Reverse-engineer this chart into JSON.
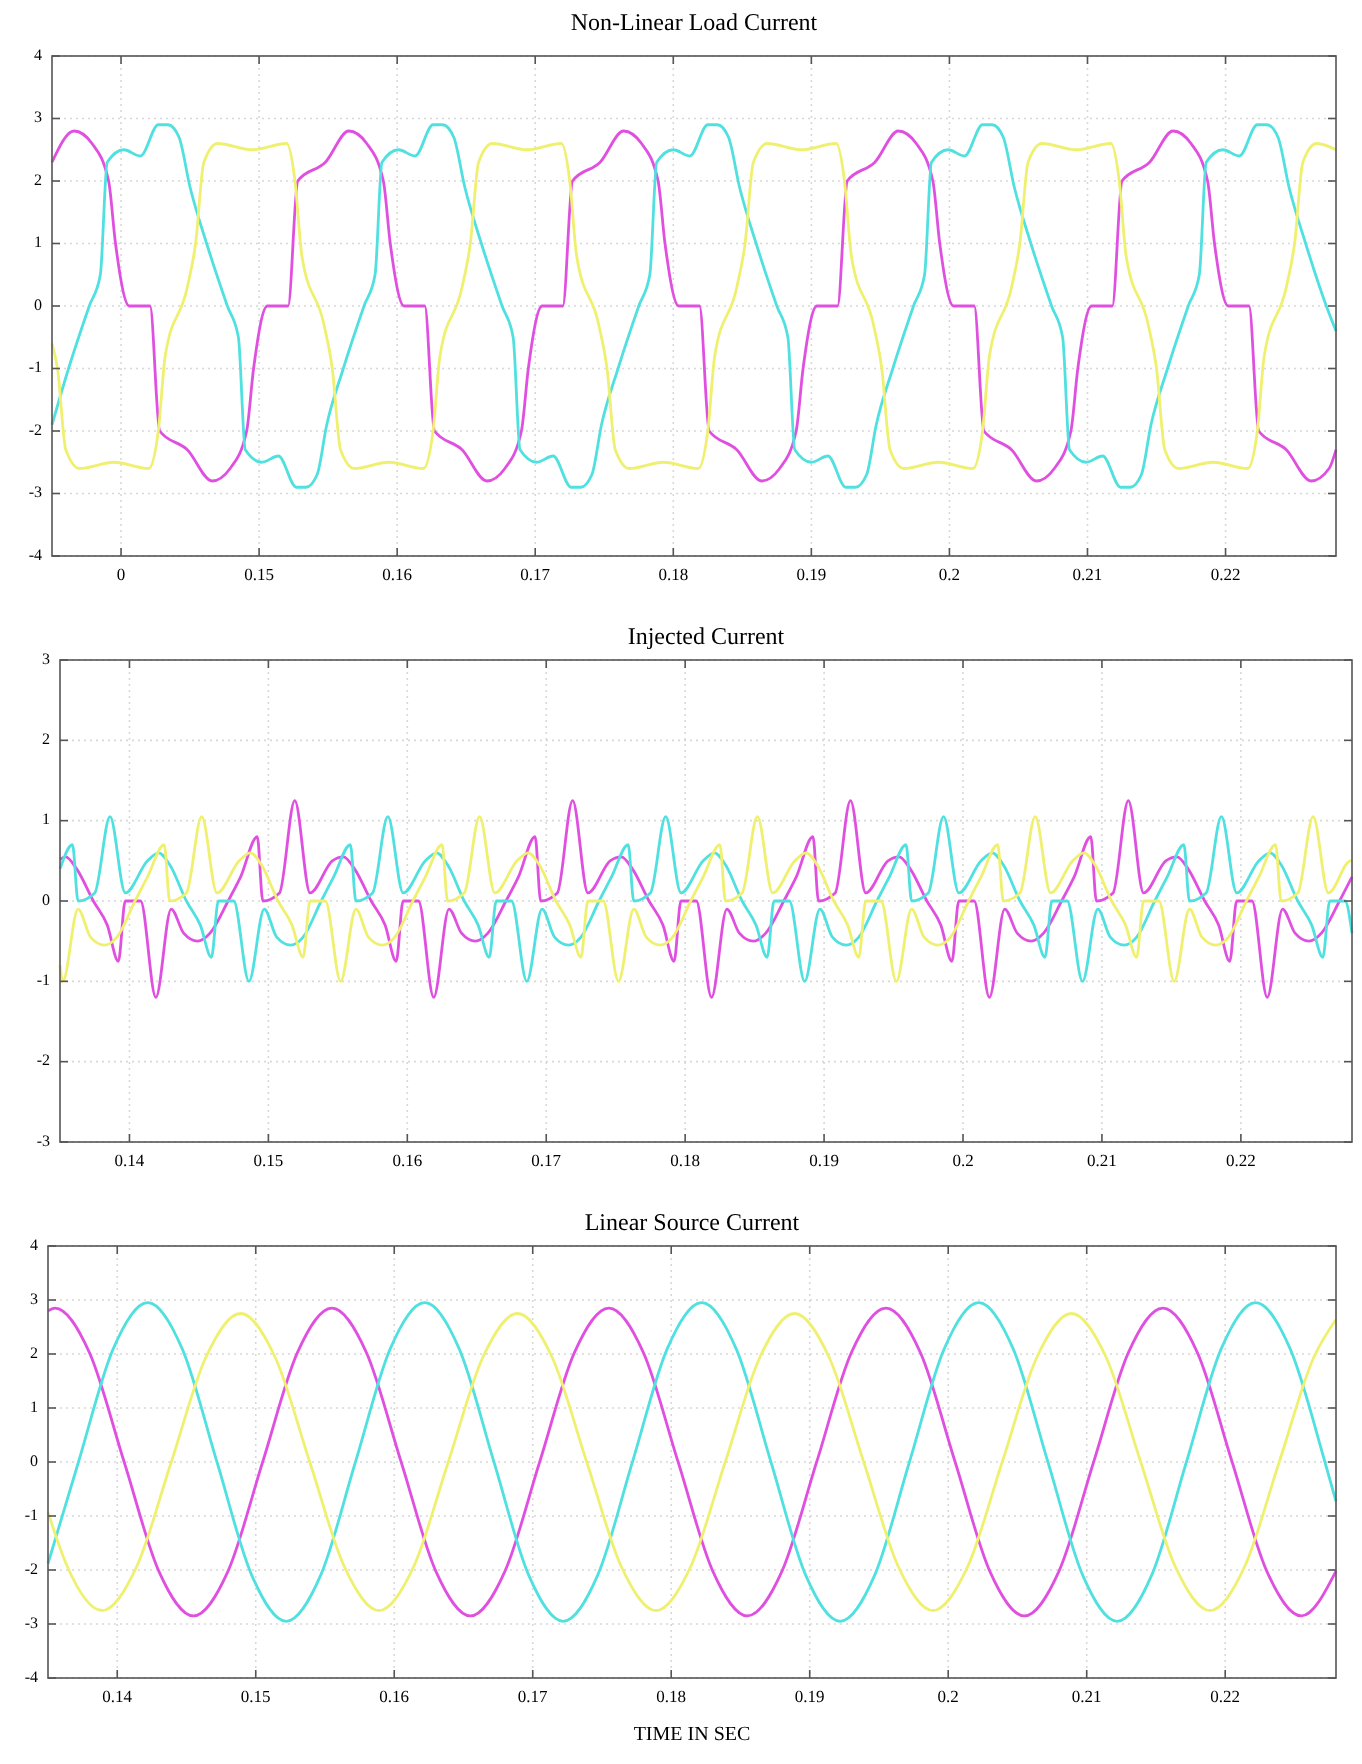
{
  "chart_data": [
    {
      "type": "line",
      "title": "Non-Linear Load Current",
      "xlim": [
        0.135,
        0.228
      ],
      "ylim": [
        -4,
        4
      ],
      "xticks": [
        {
          "value": 0.14,
          "label": "0"
        },
        0.15,
        0.16,
        0.17,
        0.18,
        0.19,
        0.2,
        0.21,
        0.22
      ],
      "yticks": [
        -4,
        -3,
        -2,
        -1,
        0,
        1,
        2,
        3,
        4
      ],
      "grid": true,
      "series": [
        {
          "color": "#e050e0",
          "x": [
            0.135,
            0.1366,
            0.1379,
            0.1391,
            0.1396,
            0.1406,
            0.1421,
            0.1428,
            0.1448,
            0.1466,
            0.1479,
            0.1491,
            0.1496,
            0.1506,
            0.1521,
            0.1528,
            0.1548,
            0.1565,
            0.1578,
            0.159,
            0.1595,
            0.1605,
            0.162,
            0.1627,
            0.1647,
            0.1665,
            0.1678,
            0.169,
            0.1695,
            0.1705,
            0.172,
            0.1727,
            0.1747,
            0.1764,
            0.1777,
            0.1789,
            0.1794,
            0.1804,
            0.1819,
            0.1826,
            0.1846,
            0.1864,
            0.1877,
            0.1889,
            0.1894,
            0.1904,
            0.1919,
            0.1926,
            0.1946,
            0.1963,
            0.1976,
            0.1988,
            0.1993,
            0.2003,
            0.2018,
            0.2025,
            0.2045,
            0.2063,
            0.2076,
            0.2088,
            0.2093,
            0.2103,
            0.2118,
            0.2125,
            0.2145,
            0.2162,
            0.2175,
            0.2187,
            0.2192,
            0.2202,
            0.2217,
            0.2224,
            0.2244,
            0.2262,
            0.2275,
            0.228
          ],
          "values": [
            2.3,
            2.8,
            2.6,
            2.0,
            1.0,
            0,
            0,
            -2.0,
            -2.3,
            -2.8,
            -2.6,
            -2.0,
            -1.0,
            0,
            0,
            2.0,
            2.3,
            2.8,
            2.6,
            2.0,
            1.0,
            0,
            0,
            -2.0,
            -2.3,
            -2.8,
            -2.6,
            -2.0,
            -1.0,
            0,
            0,
            2.0,
            2.3,
            2.8,
            2.6,
            2.0,
            1.0,
            0,
            0,
            -2.0,
            -2.3,
            -2.8,
            -2.6,
            -2.0,
            -1.0,
            0,
            0,
            2.0,
            2.3,
            2.8,
            2.6,
            2.0,
            1.0,
            0,
            0,
            -2.0,
            -2.3,
            -2.8,
            -2.6,
            -2.0,
            -1.0,
            0,
            0,
            2.0,
            2.3,
            2.8,
            2.6,
            2.0,
            1.0,
            0,
            0,
            -2.0,
            -2.3,
            -2.8,
            -2.6,
            -2.3
          ]
        },
        {
          "color": "#50e0e0",
          "x": [
            0.135,
            0.1362,
            0.1377,
            0.1385,
            0.139,
            0.1402,
            0.1414,
            0.1427,
            0.1434,
            0.1442,
            0.145,
            0.1462,
            0.1477,
            0.1485,
            0.149,
            0.1502,
            0.1514,
            0.1527,
            0.1534,
            0.1542,
            0.1549,
            0.1561,
            0.1576,
            0.1584,
            0.1589,
            0.1601,
            0.1613,
            0.1626,
            0.1633,
            0.1641,
            0.1649,
            0.1661,
            0.1676,
            0.1684,
            0.1689,
            0.1701,
            0.1713,
            0.1726,
            0.1733,
            0.1741,
            0.1748,
            0.176,
            0.1775,
            0.1783,
            0.1788,
            0.18,
            0.1812,
            0.1825,
            0.1832,
            0.184,
            0.1848,
            0.186,
            0.1875,
            0.1883,
            0.1888,
            0.19,
            0.1912,
            0.1925,
            0.1932,
            0.194,
            0.1947,
            0.1959,
            0.1974,
            0.1982,
            0.1987,
            0.1999,
            0.2011,
            0.2024,
            0.2031,
            0.2039,
            0.2047,
            0.2059,
            0.2074,
            0.2082,
            0.2087,
            0.2099,
            0.2111,
            0.2124,
            0.2131,
            0.2139,
            0.2146,
            0.2158,
            0.2173,
            0.2181,
            0.2186,
            0.2198,
            0.221,
            0.2223,
            0.223,
            0.2238,
            0.2246,
            0.2258,
            0.2273,
            0.228
          ],
          "values": [
            -1.9,
            -1.0,
            0,
            0.5,
            2.3,
            2.5,
            2.4,
            2.9,
            2.9,
            2.7,
            1.9,
            1.0,
            0,
            -0.5,
            -2.3,
            -2.5,
            -2.4,
            -2.9,
            -2.9,
            -2.7,
            -1.9,
            -1.0,
            0,
            0.5,
            2.3,
            2.5,
            2.4,
            2.9,
            2.9,
            2.7,
            1.9,
            1.0,
            0,
            -0.5,
            -2.3,
            -2.5,
            -2.4,
            -2.9,
            -2.9,
            -2.7,
            -1.9,
            -1.0,
            0,
            0.5,
            2.3,
            2.5,
            2.4,
            2.9,
            2.9,
            2.7,
            1.9,
            1.0,
            0,
            -0.5,
            -2.3,
            -2.5,
            -2.4,
            -2.9,
            -2.9,
            -2.7,
            -1.9,
            -1.0,
            0,
            0.5,
            2.3,
            2.5,
            2.4,
            2.9,
            2.9,
            2.7,
            1.9,
            1.0,
            0,
            -0.5,
            -2.3,
            -2.5,
            -2.4,
            -2.9,
            -2.9,
            -2.7,
            -1.9,
            -1.0,
            0,
            0.5,
            2.3,
            2.5,
            2.4,
            2.9,
            2.9,
            2.7,
            1.9,
            1.0,
            0,
            -0.4
          ]
        },
        {
          "color": "#f0f070",
          "x": [
            0.135,
            0.1354,
            0.136,
            0.137,
            0.1395,
            0.142,
            0.1427,
            0.1432,
            0.1448,
            0.1454,
            0.146,
            0.147,
            0.1495,
            0.152,
            0.1526,
            0.1531,
            0.1547,
            0.1553,
            0.1559,
            0.1569,
            0.1594,
            0.1619,
            0.1626,
            0.1631,
            0.1647,
            0.1653,
            0.1659,
            0.1669,
            0.1694,
            0.1719,
            0.1725,
            0.173,
            0.1746,
            0.1752,
            0.1758,
            0.1768,
            0.1793,
            0.1818,
            0.1825,
            0.183,
            0.1846,
            0.1852,
            0.1858,
            0.1868,
            0.1893,
            0.1918,
            0.1924,
            0.1929,
            0.1945,
            0.1951,
            0.1957,
            0.1967,
            0.1992,
            0.2017,
            0.2024,
            0.2029,
            0.2045,
            0.2051,
            0.2057,
            0.2067,
            0.2092,
            0.2117,
            0.2123,
            0.2128,
            0.2144,
            0.215,
            0.2156,
            0.2166,
            0.2191,
            0.2216,
            0.2223,
            0.2228,
            0.2244,
            0.225,
            0.2256,
            0.2266,
            0.228
          ],
          "values": [
            -0.6,
            -1.0,
            -2.3,
            -2.6,
            -2.5,
            -2.6,
            -2.0,
            -0.8,
            0.3,
            1.0,
            2.3,
            2.6,
            2.5,
            2.6,
            2.0,
            0.8,
            -0.3,
            -1.0,
            -2.3,
            -2.6,
            -2.5,
            -2.6,
            -2.0,
            -0.8,
            0.3,
            1.0,
            2.3,
            2.6,
            2.5,
            2.6,
            2.0,
            0.8,
            -0.3,
            -1.0,
            -2.3,
            -2.6,
            -2.5,
            -2.6,
            -2.0,
            -0.8,
            0.3,
            1.0,
            2.3,
            2.6,
            2.5,
            2.6,
            2.0,
            0.8,
            -0.3,
            -1.0,
            -2.3,
            -2.6,
            -2.5,
            -2.6,
            -2.0,
            -0.8,
            0.3,
            1.0,
            2.3,
            2.6,
            2.5,
            2.6,
            2.0,
            0.8,
            -0.3,
            -1.0,
            -2.3,
            -2.6,
            -2.5,
            -2.6,
            -2.0,
            -0.8,
            0.3,
            1.0,
            2.3,
            2.6,
            2.5
          ]
        }
      ]
    },
    {
      "type": "line",
      "title": "Injected Current",
      "xlim": [
        0.135,
        0.228
      ],
      "ylim": [
        -3,
        3
      ],
      "xticks": [
        0.14,
        0.15,
        0.16,
        0.17,
        0.18,
        0.19,
        0.2,
        0.21,
        0.22
      ],
      "yticks": [
        -3,
        -2,
        -1,
        0,
        1,
        2,
        3
      ],
      "grid": true,
      "series": [
        {
          "color": "#e050e0",
          "x": [
            0.135,
            0.1354,
            0.1362,
            0.1374,
            0.1384,
            0.1392,
            0.1397,
            0.1408,
            0.1419,
            0.143,
            0.1439,
            0.1449,
            0.1458,
            0.1471,
            0.148,
            0.1492,
            0.1496,
            0.1508,
            0.1519,
            0.153,
            0.1546,
            0.1554,
            0.1562,
            0.1574,
            0.1584,
            0.1592,
            0.1597,
            0.1608,
            0.1619,
            0.163,
            0.1639,
            0.1649,
            0.1658,
            0.1671,
            0.168,
            0.1692,
            0.1696,
            0.1708,
            0.1719,
            0.173,
            0.1746,
            0.1754,
            0.1762,
            0.1774,
            0.1784,
            0.1792,
            0.1797,
            0.1808,
            0.1819,
            0.183,
            0.1839,
            0.1849,
            0.1858,
            0.1871,
            0.188,
            0.1892,
            0.1896,
            0.1908,
            0.1919,
            0.193,
            0.1946,
            0.1954,
            0.1962,
            0.1974,
            0.1984,
            0.1992,
            0.1997,
            0.2008,
            0.2019,
            0.203,
            0.2039,
            0.2049,
            0.2058,
            0.2071,
            0.208,
            0.2092,
            0.2096,
            0.2108,
            0.2119,
            0.213,
            0.2146,
            0.2154,
            0.2162,
            0.2174,
            0.2184,
            0.2192,
            0.2197,
            0.2208,
            0.2219,
            0.223,
            0.2239,
            0.2249,
            0.2258,
            0.2271,
            0.228
          ],
          "values": [
            0.52,
            0.55,
            0.4,
            0,
            -0.3,
            -0.75,
            0,
            0,
            -1.2,
            -0.1,
            -0.4,
            -0.5,
            -0.4,
            0,
            0.3,
            0.8,
            0,
            0.1,
            1.25,
            0.1,
            0.5,
            0.55,
            0.4,
            0,
            -0.3,
            -0.75,
            0,
            0,
            -1.2,
            -0.1,
            -0.4,
            -0.5,
            -0.4,
            0,
            0.3,
            0.8,
            0,
            0.1,
            1.25,
            0.1,
            0.5,
            0.55,
            0.4,
            0,
            -0.3,
            -0.75,
            0,
            0,
            -1.2,
            -0.1,
            -0.4,
            -0.5,
            -0.4,
            0,
            0.3,
            0.8,
            0,
            0.1,
            1.25,
            0.1,
            0.5,
            0.55,
            0.4,
            0,
            -0.3,
            -0.75,
            0,
            0,
            -1.2,
            -0.1,
            -0.4,
            -0.5,
            -0.4,
            0,
            0.3,
            0.8,
            0,
            0.1,
            1.25,
            0.1,
            0.5,
            0.55,
            0.4,
            0,
            -0.3,
            -0.75,
            0,
            0,
            -1.2,
            -0.1,
            -0.4,
            -0.5,
            -0.4,
            0,
            0.3
          ]
        },
        {
          "color": "#50e0e0",
          "x": [
            0.135,
            0.1359,
            0.1363,
            0.1375,
            0.1386,
            0.1397,
            0.1413,
            0.1421,
            0.1429,
            0.1441,
            0.1451,
            0.1459,
            0.1464,
            0.1475,
            0.1486,
            0.1497,
            0.1506,
            0.1516,
            0.1525,
            0.1538,
            0.1547,
            0.1559,
            0.1563,
            0.1575,
            0.1586,
            0.1597,
            0.1613,
            0.1621,
            0.1629,
            0.1641,
            0.1651,
            0.1659,
            0.1664,
            0.1675,
            0.1686,
            0.1697,
            0.1706,
            0.1716,
            0.1725,
            0.1738,
            0.1747,
            0.1759,
            0.1763,
            0.1775,
            0.1786,
            0.1797,
            0.1813,
            0.1821,
            0.1829,
            0.1841,
            0.1851,
            0.1859,
            0.1864,
            0.1875,
            0.1886,
            0.1897,
            0.1906,
            0.1916,
            0.1925,
            0.1938,
            0.1947,
            0.1959,
            0.1963,
            0.1975,
            0.1986,
            0.1997,
            0.2013,
            0.2021,
            0.2029,
            0.2041,
            0.2051,
            0.2059,
            0.2064,
            0.2075,
            0.2086,
            0.2097,
            0.2106,
            0.2116,
            0.2125,
            0.2138,
            0.2147,
            0.2159,
            0.2163,
            0.2175,
            0.2186,
            0.2197,
            0.2213,
            0.2221,
            0.2229,
            0.2241,
            0.2251,
            0.2259,
            0.2264,
            0.2275,
            0.228
          ],
          "values": [
            0.4,
            0.7,
            0,
            0.1,
            1.05,
            0.1,
            0.5,
            0.6,
            0.45,
            0,
            -0.3,
            -0.7,
            0,
            0,
            -1.0,
            -0.1,
            -0.45,
            -0.55,
            -0.45,
            0,
            0.3,
            0.7,
            0,
            0.1,
            1.05,
            0.1,
            0.5,
            0.6,
            0.45,
            0,
            -0.3,
            -0.7,
            0,
            0,
            -1.0,
            -0.1,
            -0.45,
            -0.55,
            -0.45,
            0,
            0.3,
            0.7,
            0,
            0.1,
            1.05,
            0.1,
            0.5,
            0.6,
            0.45,
            0,
            -0.3,
            -0.7,
            0,
            0,
            -1.0,
            -0.1,
            -0.45,
            -0.55,
            -0.45,
            0,
            0.3,
            0.7,
            0,
            0.1,
            1.05,
            0.1,
            0.5,
            0.6,
            0.45,
            0,
            -0.3,
            -0.7,
            0,
            0,
            -1.0,
            -0.1,
            -0.45,
            -0.55,
            -0.45,
            0,
            0.3,
            0.7,
            0,
            0.1,
            1.05,
            0.1,
            0.5,
            0.6,
            0.45,
            0,
            -0.3,
            -0.7,
            0,
            0,
            -0.4
          ]
        },
        {
          "color": "#f0f070",
          "x": [
            0.135,
            0.1352,
            0.1363,
            0.1372,
            0.1382,
            0.1391,
            0.1404,
            0.1413,
            0.1425,
            0.1429,
            0.1441,
            0.1452,
            0.1463,
            0.1479,
            0.1487,
            0.1495,
            0.1507,
            0.1517,
            0.1525,
            0.153,
            0.1541,
            0.1552,
            0.1563,
            0.1572,
            0.1582,
            0.1591,
            0.1604,
            0.1613,
            0.1625,
            0.1629,
            0.1641,
            0.1652,
            0.1663,
            0.1679,
            0.1687,
            0.1695,
            0.1707,
            0.1717,
            0.1725,
            0.173,
            0.1741,
            0.1752,
            0.1763,
            0.1772,
            0.1782,
            0.1791,
            0.1804,
            0.1813,
            0.1825,
            0.1829,
            0.1841,
            0.1852,
            0.1863,
            0.1879,
            0.1887,
            0.1895,
            0.1907,
            0.1917,
            0.1925,
            0.193,
            0.1941,
            0.1952,
            0.1963,
            0.1972,
            0.1982,
            0.1991,
            0.2004,
            0.2013,
            0.2025,
            0.2029,
            0.2041,
            0.2052,
            0.2063,
            0.2079,
            0.2087,
            0.2095,
            0.2107,
            0.2117,
            0.2125,
            0.213,
            0.2141,
            0.2152,
            0.2163,
            0.2172,
            0.2182,
            0.2191,
            0.2204,
            0.2213,
            0.2225,
            0.2229,
            0.2241,
            0.2252,
            0.2263,
            0.2279,
            0.228
          ],
          "values": [
            -0.8,
            -1.0,
            -0.1,
            -0.45,
            -0.55,
            -0.45,
            0,
            0.3,
            0.7,
            0,
            0.1,
            1.05,
            0.1,
            0.5,
            0.6,
            0.45,
            0,
            -0.3,
            -0.7,
            0,
            0,
            -1.0,
            -0.1,
            -0.45,
            -0.55,
            -0.45,
            0,
            0.3,
            0.7,
            0,
            0.1,
            1.05,
            0.1,
            0.5,
            0.6,
            0.45,
            0,
            -0.3,
            -0.7,
            0,
            0,
            -1.0,
            -0.1,
            -0.45,
            -0.55,
            -0.45,
            0,
            0.3,
            0.7,
            0,
            0.1,
            1.05,
            0.1,
            0.5,
            0.6,
            0.45,
            0,
            -0.3,
            -0.7,
            0,
            0,
            -1.0,
            -0.1,
            -0.45,
            -0.55,
            -0.45,
            0,
            0.3,
            0.7,
            0,
            0.1,
            1.05,
            0.1,
            0.5,
            0.6,
            0.45,
            0,
            -0.3,
            -0.7,
            0,
            0,
            -1.0,
            -0.1,
            -0.45,
            -0.55,
            -0.45,
            0,
            0.3,
            0.7,
            0,
            0.1,
            1.05,
            0.1,
            0.5,
            0.5
          ]
        }
      ]
    },
    {
      "type": "line",
      "title": "Linear Source Current",
      "xlabel": "TIME IN SEC",
      "xlim": [
        0.135,
        0.228
      ],
      "ylim": [
        -4,
        4
      ],
      "xticks": [
        0.14,
        0.15,
        0.16,
        0.17,
        0.18,
        0.19,
        0.2,
        0.21,
        0.22
      ],
      "yticks": [
        -4,
        -3,
        -2,
        -1,
        0,
        1,
        2,
        3,
        4
      ],
      "grid": true,
      "series": [
        {
          "color": "#e050e0",
          "x": [
            0.135,
            0.1355,
            0.138,
            0.1405,
            0.143,
            0.1455,
            0.148,
            0.1505,
            0.153,
            0.1555,
            0.158,
            0.1605,
            0.163,
            0.1655,
            0.168,
            0.1705,
            0.173,
            0.1755,
            0.178,
            0.1805,
            0.183,
            0.1855,
            0.188,
            0.1905,
            0.193,
            0.1955,
            0.198,
            0.2005,
            0.203,
            0.2055,
            0.208,
            0.2105,
            0.213,
            0.2155,
            0.218,
            0.2205,
            0.223,
            0.2255,
            0.228
          ],
          "values": [
            2.8,
            2.85,
            2.02,
            0,
            -2.02,
            -2.85,
            -2.02,
            0,
            2.02,
            2.85,
            2.02,
            0,
            -2.02,
            -2.85,
            -2.02,
            0,
            2.02,
            2.85,
            2.02,
            0,
            -2.02,
            -2.85,
            -2.02,
            0,
            2.02,
            2.85,
            2.02,
            0,
            -2.02,
            -2.85,
            -2.02,
            0,
            2.02,
            2.85,
            2.02,
            0,
            -2.02,
            -2.85,
            -2.02
          ]
        },
        {
          "color": "#50e0e0",
          "x": [
            0.135,
            0.1372,
            0.1397,
            0.1422,
            0.1447,
            0.1472,
            0.1497,
            0.1522,
            0.1547,
            0.1572,
            0.1597,
            0.1622,
            0.1647,
            0.1672,
            0.1697,
            0.1722,
            0.1747,
            0.1772,
            0.1797,
            0.1822,
            0.1847,
            0.1872,
            0.1897,
            0.1922,
            0.1947,
            0.1972,
            0.1997,
            0.2022,
            0.2047,
            0.2072,
            0.2097,
            0.2122,
            0.2147,
            0.2172,
            0.2197,
            0.2222,
            0.2247,
            0.2272,
            0.228
          ],
          "values": [
            -1.88,
            0,
            2.09,
            2.95,
            2.09,
            0,
            -2.09,
            -2.95,
            -2.09,
            0,
            2.09,
            2.95,
            2.09,
            0,
            -2.09,
            -2.95,
            -2.09,
            0,
            2.09,
            2.95,
            2.09,
            0,
            -2.09,
            -2.95,
            -2.09,
            0,
            2.09,
            2.95,
            2.09,
            0,
            -2.09,
            -2.95,
            -2.09,
            0,
            2.09,
            2.95,
            2.09,
            0,
            -0.73
          ]
        },
        {
          "color": "#f0f070",
          "x": [
            0.135,
            0.1364,
            0.1389,
            0.1414,
            0.1439,
            0.1464,
            0.1489,
            0.1514,
            0.1539,
            0.1564,
            0.1589,
            0.1614,
            0.1639,
            0.1664,
            0.1689,
            0.1714,
            0.1739,
            0.1764,
            0.1789,
            0.1814,
            0.1839,
            0.1864,
            0.1889,
            0.1914,
            0.1939,
            0.1964,
            0.1989,
            0.2014,
            0.2039,
            0.2064,
            0.2089,
            0.2114,
            0.2139,
            0.2164,
            0.2189,
            0.2214,
            0.2239,
            0.2264,
            0.228
          ],
          "values": [
            -0.93,
            -1.94,
            -2.75,
            -1.94,
            0,
            1.94,
            2.75,
            1.94,
            0,
            -1.94,
            -2.75,
            -1.94,
            0,
            1.94,
            2.75,
            1.94,
            0,
            -1.94,
            -2.75,
            -1.94,
            0,
            1.94,
            2.75,
            1.94,
            0,
            -1.94,
            -2.75,
            -1.94,
            0,
            1.94,
            2.75,
            1.94,
            0,
            -1.94,
            -2.75,
            -1.94,
            0,
            1.94,
            2.64
          ]
        }
      ]
    }
  ]
}
